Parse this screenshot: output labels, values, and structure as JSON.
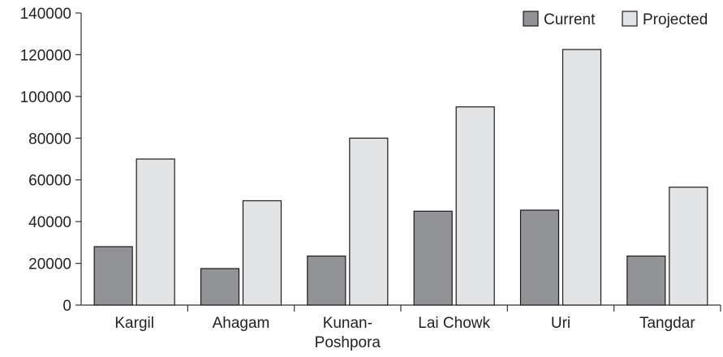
{
  "chart_data": {
    "type": "bar",
    "title": "",
    "xlabel": "",
    "ylabel": "",
    "categories": [
      [
        "Kargil"
      ],
      [
        "Ahagam"
      ],
      [
        "Kunan-",
        "Poshpora"
      ],
      [
        "Lai Chowk"
      ],
      [
        "Uri"
      ],
      [
        "Tangdar"
      ]
    ],
    "series": [
      {
        "name": "Current",
        "color": "#929396",
        "values": [
          28000,
          17500,
          23500,
          45000,
          45500,
          23500
        ]
      },
      {
        "name": "Projected",
        "color": "#e3e4e6",
        "values": [
          70000,
          50000,
          80000,
          95000,
          122500,
          56500
        ]
      }
    ],
    "ylim": [
      0,
      140000
    ],
    "yticks": [
      0,
      20000,
      40000,
      60000,
      80000,
      100000,
      120000,
      140000
    ],
    "grid": false,
    "legend_position": "top-right"
  }
}
